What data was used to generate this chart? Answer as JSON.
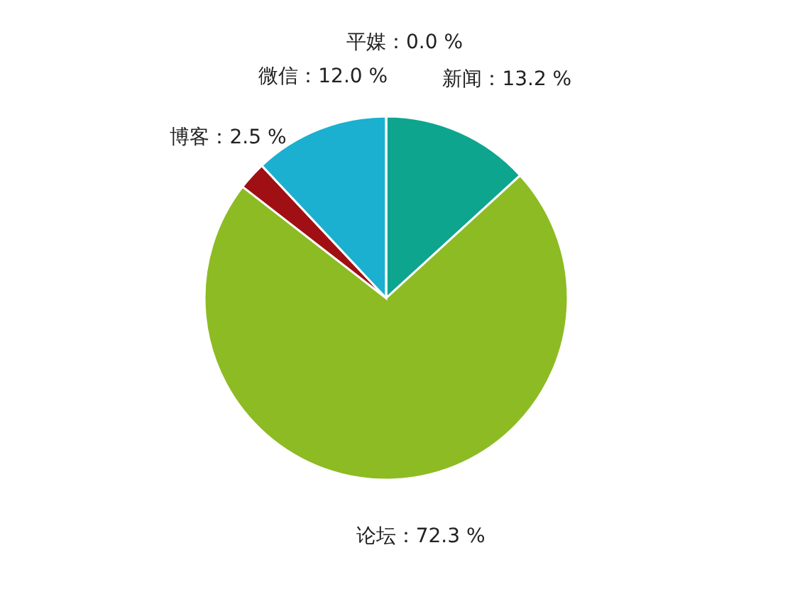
{
  "chart_data": {
    "type": "pie",
    "categories": [
      "新闻",
      "论坛",
      "博客",
      "微信",
      "平媒"
    ],
    "values": [
      13.2,
      72.3,
      2.5,
      12.0,
      0.0
    ],
    "colors": [
      "#0ea58f",
      "#8dbb24",
      "#a00f14",
      "#1bafd0",
      "#f0a030"
    ],
    "value_labels": [
      "：13.2 %",
      "：72.3 %",
      "：2.5 %",
      "：12.0 %",
      "：0.0 %"
    ]
  }
}
